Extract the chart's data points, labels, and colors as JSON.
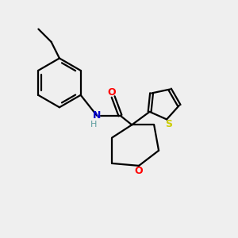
{
  "background_color": "#efefef",
  "colors": {
    "bond": "#000000",
    "N": "#0000cc",
    "O_carbonyl": "#ff0000",
    "O_ring": "#ff0000",
    "S": "#cccc00",
    "H": "#5f9ea0",
    "C": "#000000"
  },
  "figsize": [
    3.0,
    3.0
  ],
  "dpi": 100,
  "xlim": [
    0,
    10
  ],
  "ylim": [
    0,
    10
  ]
}
